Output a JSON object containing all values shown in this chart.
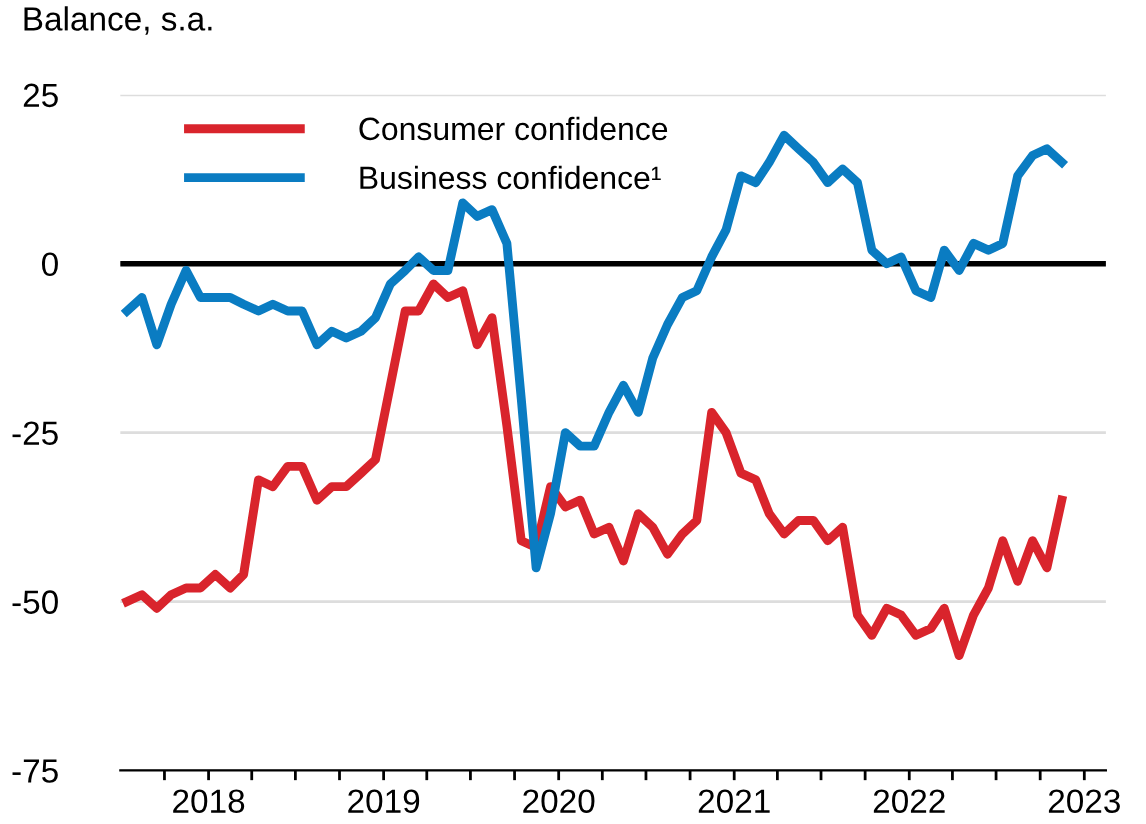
{
  "chart_data": {
    "type": "line",
    "ylabel": "Balance, s.a.",
    "x": [
      "2017-07-15",
      "2017-08-15",
      "2017-09-15",
      "2017-10-15",
      "2017-11-15",
      "2017-12-15",
      "2018-01-15",
      "2018-02-15",
      "2018-03-15",
      "2018-04-15",
      "2018-05-15",
      "2018-06-15",
      "2018-07-15",
      "2018-08-15",
      "2018-09-15",
      "2018-10-15",
      "2018-11-15",
      "2018-12-15",
      "2019-01-15",
      "2019-02-15",
      "2019-03-15",
      "2019-04-15",
      "2019-05-15",
      "2019-06-15",
      "2019-07-15",
      "2019-08-15",
      "2019-09-15",
      "2019-10-15",
      "2019-11-15",
      "2019-12-15",
      "2020-01-15",
      "2020-02-15",
      "2020-03-15",
      "2020-04-15",
      "2020-05-15",
      "2020-06-15",
      "2020-07-15",
      "2020-08-15",
      "2020-09-15",
      "2020-10-15",
      "2020-11-15",
      "2020-12-15",
      "2021-01-15",
      "2021-02-15",
      "2021-03-15",
      "2021-04-15",
      "2021-05-15",
      "2021-06-15",
      "2021-07-15",
      "2021-08-15",
      "2021-09-15",
      "2021-10-15",
      "2021-11-15",
      "2021-12-15",
      "2022-01-15",
      "2022-02-15",
      "2022-03-15",
      "2022-04-15",
      "2022-05-15",
      "2022-06-15",
      "2022-07-15",
      "2022-08-15",
      "2022-09-15",
      "2022-10-15",
      "2022-11-15"
    ],
    "series": [
      {
        "name": "Consumer confidence",
        "color": "#d9242c",
        "values": [
          -50,
          -49,
          -51,
          -49,
          -48,
          -48,
          -46,
          -48,
          -46,
          -32,
          -33,
          -30,
          -30,
          -35,
          -33,
          -33,
          -31,
          -29,
          -18,
          -7,
          -7,
          -3,
          -5,
          -4,
          -12,
          -8,
          -24,
          -41,
          -42,
          -33,
          -36,
          -35,
          -40,
          -39,
          -44,
          -37,
          -39,
          -43,
          -40,
          -38,
          -22,
          -25,
          -31,
          -32,
          -37,
          -40,
          -38,
          -38,
          -41,
          -39,
          -52,
          -55,
          -51,
          -52,
          -55,
          -54,
          -51,
          -58,
          -52,
          -48,
          -41,
          -47,
          -41,
          -45,
          -35
        ]
      },
      {
        "name": "Business confidence¹",
        "color": "#0a7cc2",
        "values": [
          -7,
          -5,
          -12,
          -6,
          -1,
          -5,
          -5,
          -5,
          -6,
          -7,
          -6,
          -7,
          -7,
          -12,
          -10,
          -11,
          -10,
          -8,
          -3,
          -1,
          1,
          -1,
          -1,
          9,
          7,
          8,
          3,
          -20,
          -45,
          -37,
          -25,
          -27,
          -27,
          -22,
          -18,
          -22,
          -14,
          -9,
          -5,
          -4,
          1,
          5,
          13,
          12,
          15,
          19,
          17,
          15,
          12,
          14,
          12,
          2,
          0,
          1,
          -4,
          -5,
          2,
          -1,
          3,
          2,
          3,
          13,
          16,
          17,
          15
        ]
      }
    ],
    "xlim": [
      "2017-07-01",
      "2023-02-15"
    ],
    "xticks": [
      {
        "value": "2017-10-01",
        "label": null
      },
      {
        "value": "2018-01-01",
        "label": "2018"
      },
      {
        "value": "2018-04-01",
        "label": null
      },
      {
        "value": "2018-07-01",
        "label": null
      },
      {
        "value": "2018-10-01",
        "label": null
      },
      {
        "value": "2019-01-01",
        "label": "2019"
      },
      {
        "value": "2019-04-01",
        "label": null
      },
      {
        "value": "2019-07-01",
        "label": null
      },
      {
        "value": "2019-10-01",
        "label": null
      },
      {
        "value": "2020-01-01",
        "label": "2020"
      },
      {
        "value": "2020-04-01",
        "label": null
      },
      {
        "value": "2020-07-01",
        "label": null
      },
      {
        "value": "2020-10-01",
        "label": null
      },
      {
        "value": "2021-01-01",
        "label": "2021"
      },
      {
        "value": "2021-04-01",
        "label": null
      },
      {
        "value": "2021-07-01",
        "label": null
      },
      {
        "value": "2021-10-01",
        "label": null
      },
      {
        "value": "2022-01-01",
        "label": "2022"
      },
      {
        "value": "2022-04-01",
        "label": null
      },
      {
        "value": "2022-07-01",
        "label": null
      },
      {
        "value": "2022-10-01",
        "label": null
      },
      {
        "value": "2023-01-01",
        "label": "2023"
      }
    ],
    "ylim": [
      -75,
      25
    ],
    "yticks": [
      -75,
      -50,
      -25,
      0,
      25
    ],
    "ref_lines": [
      {
        "axis": "y",
        "value": 0,
        "color": "#000000"
      }
    ],
    "grid": "y",
    "legend": "top left",
    "marker": "none",
    "line_style": "solid"
  }
}
